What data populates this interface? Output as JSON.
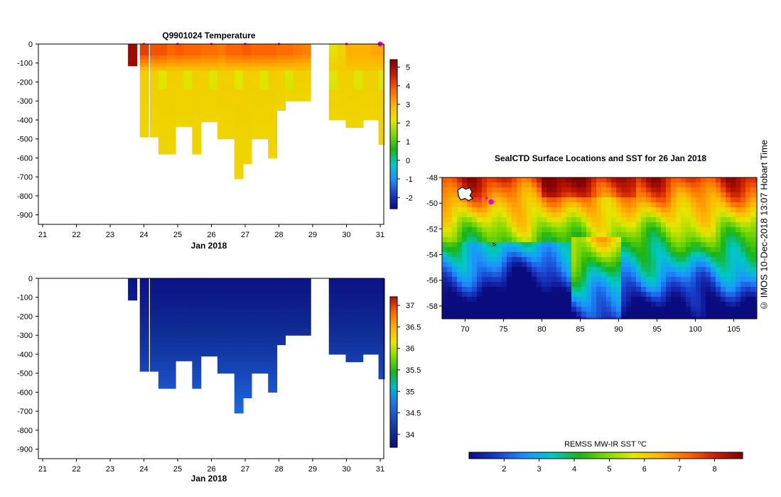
{
  "colors": {
    "temperature_colormap": [
      "#0b0b80",
      "#1a3cc8",
      "#1e90ff",
      "#00c8c8",
      "#18b418",
      "#7cd800",
      "#e6e600",
      "#ffb000",
      "#ff6400",
      "#c81e00",
      "#800000"
    ],
    "sst_colormap": [
      "#0b0b80",
      "#1a3cc8",
      "#1e90ff",
      "#00c8c8",
      "#18b418",
      "#7cd800",
      "#e6e600",
      "#ffb000",
      "#ff6400",
      "#c81e00",
      "#800000"
    ],
    "salinity_colormap": [
      "#0b0b80",
      "#102e96",
      "#1a4fc4",
      "#1e78e6",
      "#00b4d2",
      "#18b418",
      "#7cd800",
      "#e6e600",
      "#ffb000",
      "#ff6400",
      "#b41400"
    ],
    "marker": "#e600e6"
  },
  "copyright": "© IMOS 10-Dec-2018 13:07 Hobart Time",
  "chart_data": [
    {
      "id": "temperature-section",
      "type": "heatmap",
      "title": "Q9901024  Temperature",
      "xlabel": "Jan 2018",
      "x_ticks": [
        "21",
        "22",
        "23",
        "24",
        "25",
        "26",
        "27",
        "28",
        "29",
        "30",
        "31"
      ],
      "y_ticks": [
        "0",
        "-100",
        "-200",
        "-300",
        "-400",
        "-500",
        "-600",
        "-700",
        "-800",
        "-900"
      ],
      "xlim": [
        21,
        31
      ],
      "ylim": [
        -950,
        0
      ],
      "colorbar": {
        "ticks": [
          "5",
          "4",
          "3",
          "2",
          "1",
          "0",
          "-1",
          "-2"
        ],
        "range": [
          -2.6,
          5.4
        ]
      },
      "profiles": [
        {
          "day": 23.55,
          "depth": 115,
          "surface": 5.2,
          "deep": 5.0
        },
        {
          "day": 23.9,
          "depth": 490,
          "surface": 4.2,
          "deep": 2.5
        },
        {
          "day": 24.2,
          "depth": 490,
          "surface": 4.0,
          "deep": 2.5
        },
        {
          "day": 24.45,
          "depth": 580,
          "surface": 4.0,
          "deep": 2.5
        },
        {
          "day": 24.7,
          "depth": 580,
          "surface": 3.8,
          "deep": 2.5
        },
        {
          "day": 24.95,
          "depth": 435,
          "surface": 3.9,
          "deep": 2.5
        },
        {
          "day": 25.2,
          "depth": 435,
          "surface": 3.8,
          "deep": 2.5
        },
        {
          "day": 25.45,
          "depth": 580,
          "surface": 3.8,
          "deep": 2.5
        },
        {
          "day": 25.7,
          "depth": 410,
          "surface": 3.7,
          "deep": 2.5
        },
        {
          "day": 25.95,
          "depth": 410,
          "surface": 3.7,
          "deep": 2.5
        },
        {
          "day": 26.2,
          "depth": 500,
          "surface": 3.6,
          "deep": 2.5
        },
        {
          "day": 26.45,
          "depth": 500,
          "surface": 3.8,
          "deep": 2.5
        },
        {
          "day": 26.7,
          "depth": 710,
          "surface": 3.8,
          "deep": 2.5
        },
        {
          "day": 26.95,
          "depth": 630,
          "surface": 3.9,
          "deep": 2.5
        },
        {
          "day": 27.2,
          "depth": 500,
          "surface": 3.8,
          "deep": 2.5
        },
        {
          "day": 27.45,
          "depth": 500,
          "surface": 3.8,
          "deep": 2.5
        },
        {
          "day": 27.7,
          "depth": 600,
          "surface": 3.8,
          "deep": 2.5
        },
        {
          "day": 27.95,
          "depth": 350,
          "surface": 3.7,
          "deep": 2.5
        },
        {
          "day": 28.2,
          "depth": 300,
          "surface": 3.7,
          "deep": 2.5
        },
        {
          "day": 28.45,
          "depth": 300,
          "surface": 3.6,
          "deep": 2.5
        },
        {
          "day": 28.7,
          "depth": 300,
          "surface": 3.5,
          "deep": 2.5
        },
        {
          "day": 29.5,
          "depth": 400,
          "surface": 2.3,
          "deep": 2.5
        },
        {
          "day": 29.75,
          "depth": 400,
          "surface": 2.5,
          "deep": 2.5
        },
        {
          "day": 30.0,
          "depth": 440,
          "surface": 3.0,
          "deep": 2.5
        },
        {
          "day": 30.25,
          "depth": 440,
          "surface": 3.0,
          "deep": 2.5
        },
        {
          "day": 30.5,
          "depth": 400,
          "surface": 3.0,
          "deep": 2.5
        },
        {
          "day": 30.75,
          "depth": 400,
          "surface": 3.1,
          "deep": 2.5
        },
        {
          "day": 30.97,
          "depth": 530,
          "surface": 3.1,
          "deep": 2.5
        }
      ],
      "surface_markers": [
        24.0,
        25.0,
        26.0,
        27.0,
        28.0,
        30.0,
        31.0
      ]
    },
    {
      "id": "salinity-section",
      "type": "heatmap",
      "title": "",
      "xlabel": "Jan 2018",
      "x_ticks": [
        "21",
        "22",
        "23",
        "24",
        "25",
        "26",
        "27",
        "28",
        "29",
        "30",
        "31"
      ],
      "y_ticks": [
        "0",
        "-100",
        "-200",
        "-300",
        "-400",
        "-500",
        "-600",
        "-700",
        "-800",
        "-900"
      ],
      "xlim": [
        21,
        31
      ],
      "ylim": [
        -950,
        0
      ],
      "colorbar": {
        "ticks": [
          "37",
          "36.5",
          "36",
          "35.5",
          "35",
          "34.5",
          "34"
        ],
        "range": [
          33.7,
          37.2
        ]
      },
      "profile_source": "same casts as temperature-section"
    },
    {
      "id": "sst-map",
      "type": "heatmap",
      "title": "SealCTD Surface Locations and SST for 26 Jan 2018",
      "x_ticks": [
        "70",
        "75",
        "80",
        "85",
        "90",
        "95",
        "100",
        "105"
      ],
      "y_ticks": [
        "-48",
        "-50",
        "-52",
        "-54",
        "-56",
        "-58"
      ],
      "lon_range": [
        67,
        108
      ],
      "lat_range": [
        -59,
        -48
      ],
      "colorbar_label": "REMSS MW-IR SST ⁰C",
      "colorbar_ticks": [
        "2",
        "3",
        "4",
        "5",
        "6",
        "7",
        "8"
      ],
      "colorbar_range": [
        1,
        8.8
      ],
      "positions": [
        {
          "lon": 71.9,
          "lat": -49.6
        },
        {
          "lon": 72.8,
          "lat": -49.6
        },
        {
          "lon": 73.4,
          "lat": -49.8
        }
      ],
      "current_position": {
        "lon": 73.4,
        "lat": -49.9
      },
      "land_label": ""
    }
  ]
}
